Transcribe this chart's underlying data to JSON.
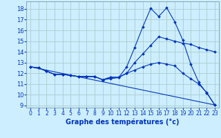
{
  "xlabel": "Graphe des températures (°c)",
  "background_color": "#cceeff",
  "grid_color": "#aacccc",
  "line_color": "#0033bb",
  "xlim": [
    -0.5,
    23.5
  ],
  "ylim": [
    8.8,
    18.7
  ],
  "yticks": [
    9,
    10,
    11,
    12,
    13,
    14,
    15,
    16,
    17,
    18
  ],
  "xticks": [
    0,
    1,
    2,
    3,
    4,
    5,
    6,
    7,
    8,
    9,
    10,
    11,
    12,
    13,
    14,
    15,
    16,
    17,
    18,
    19,
    20,
    21,
    22,
    23
  ],
  "lines": [
    {
      "x": [
        0,
        1,
        2,
        3,
        4,
        5,
        6,
        7,
        8,
        9,
        10,
        11,
        12,
        13,
        14,
        15,
        16,
        17,
        18,
        19,
        20,
        21,
        22,
        23
      ],
      "y": [
        12.6,
        12.5,
        12.2,
        11.9,
        11.9,
        11.8,
        11.7,
        11.7,
        11.7,
        11.4,
        11.65,
        11.6,
        12.6,
        14.4,
        16.3,
        18.05,
        17.3,
        18.1,
        16.8,
        15.1,
        12.85,
        11.15,
        10.15,
        9.05
      ],
      "marker": true
    },
    {
      "x": [
        0,
        1,
        2,
        3,
        4,
        5,
        6,
        7,
        8,
        9,
        10,
        11,
        12,
        13,
        14,
        15,
        16,
        17,
        18,
        19,
        20,
        21,
        22,
        23
      ],
      "y": [
        12.6,
        12.5,
        12.2,
        11.9,
        11.9,
        11.8,
        11.7,
        11.7,
        11.7,
        11.4,
        11.6,
        11.65,
        12.0,
        13.0,
        13.8,
        14.6,
        15.4,
        15.2,
        15.0,
        14.8,
        14.7,
        14.4,
        14.2,
        14.0
      ],
      "marker": true
    },
    {
      "x": [
        0,
        1,
        2,
        3,
        4,
        5,
        6,
        7,
        8,
        9,
        10,
        11,
        12,
        13,
        14,
        15,
        16,
        17,
        18,
        19,
        20,
        21,
        22,
        23
      ],
      "y": [
        12.6,
        12.5,
        12.2,
        11.9,
        11.9,
        11.8,
        11.7,
        11.7,
        11.7,
        11.4,
        11.5,
        11.6,
        12.0,
        12.3,
        12.6,
        12.85,
        13.0,
        12.85,
        12.7,
        12.0,
        11.5,
        11.0,
        10.2,
        9.05
      ],
      "marker": true
    },
    {
      "x": [
        0,
        23
      ],
      "y": [
        12.6,
        9.05
      ],
      "marker": false
    }
  ],
  "xlabel_fontsize": 7,
  "tick_fontsize": 5.5,
  "xlabel_color": "#0033bb",
  "tick_color": "#0033bb"
}
